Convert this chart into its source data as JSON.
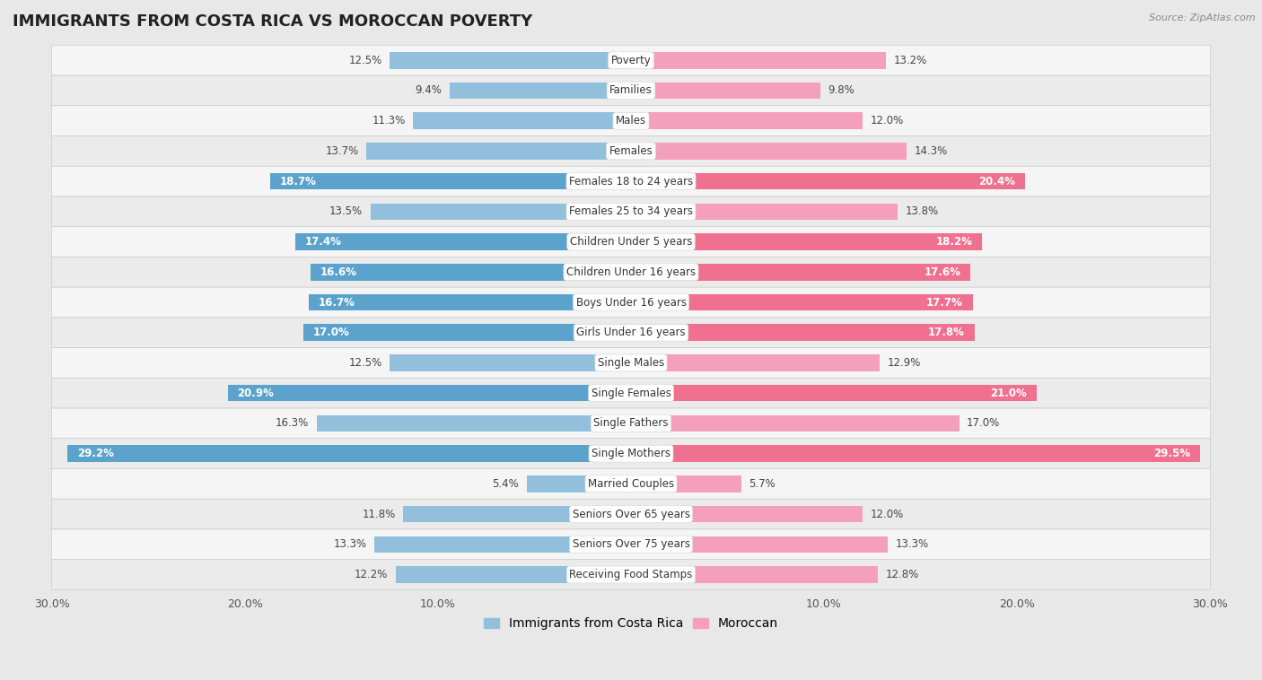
{
  "title": "IMMIGRANTS FROM COSTA RICA VS MOROCCAN POVERTY",
  "source": "Source: ZipAtlas.com",
  "categories": [
    "Poverty",
    "Families",
    "Males",
    "Females",
    "Females 18 to 24 years",
    "Females 25 to 34 years",
    "Children Under 5 years",
    "Children Under 16 years",
    "Boys Under 16 years",
    "Girls Under 16 years",
    "Single Males",
    "Single Females",
    "Single Fathers",
    "Single Mothers",
    "Married Couples",
    "Seniors Over 65 years",
    "Seniors Over 75 years",
    "Receiving Food Stamps"
  ],
  "left_values": [
    12.5,
    9.4,
    11.3,
    13.7,
    18.7,
    13.5,
    17.4,
    16.6,
    16.7,
    17.0,
    12.5,
    20.9,
    16.3,
    29.2,
    5.4,
    11.8,
    13.3,
    12.2
  ],
  "right_values": [
    13.2,
    9.8,
    12.0,
    14.3,
    20.4,
    13.8,
    18.2,
    17.6,
    17.7,
    17.8,
    12.9,
    21.0,
    17.0,
    29.5,
    5.7,
    12.0,
    13.3,
    12.8
  ],
  "left_color": "#92C0DC",
  "right_color": "#F4A0BC",
  "highlight_left_color": "#5BA3CC",
  "highlight_right_color": "#F07090",
  "highlight_indices": [
    4,
    6,
    7,
    8,
    9,
    11,
    13
  ],
  "max_value": 30.0,
  "outer_bg_color": "#e8e8e8",
  "row_bg_color": "#f5f5f5",
  "row_bg_color_alt": "#ebebeb",
  "legend_left": "Immigrants from Costa Rica",
  "legend_right": "Moroccan",
  "title_fontsize": 13,
  "label_fontsize": 8.5,
  "value_fontsize": 8.5
}
